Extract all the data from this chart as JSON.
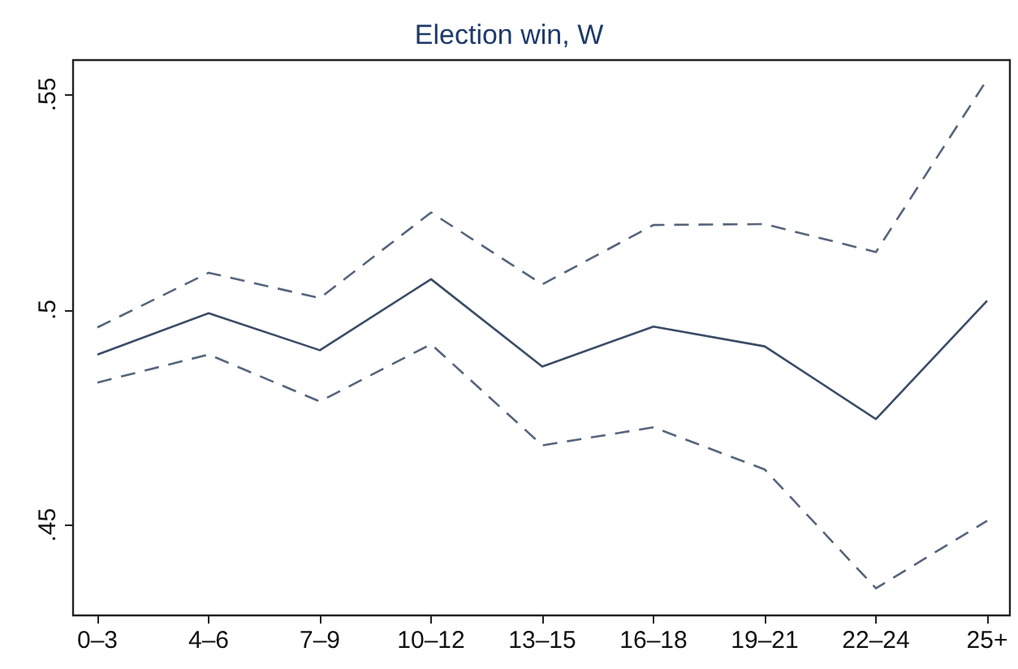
{
  "chart_data": {
    "type": "line",
    "title": "Election win, W",
    "categories": [
      "0–3",
      "4–6",
      "7–9",
      "10–12",
      "13–15",
      "16–18",
      "19–21",
      "22–24",
      "25+"
    ],
    "series": [
      {
        "color": "#3b4c66",
        "values": [
          0.4896,
          0.4992,
          0.4906,
          0.5071,
          0.4868,
          0.4961,
          0.4915,
          0.4746,
          0.5021
        ],
        "line_style": "solid"
      },
      {
        "color": "#56657c",
        "values": [
          0.4959,
          0.5086,
          0.5027,
          0.5226,
          0.5059,
          0.5197,
          0.5199,
          0.5134,
          0.5535
        ],
        "line_style": "dashed"
      },
      {
        "color": "#56657c",
        "values": [
          0.4831,
          0.4896,
          0.4787,
          0.492,
          0.4685,
          0.4727,
          0.4629,
          0.4353,
          0.451
        ],
        "line_style": "dashed"
      }
    ],
    "ylim": [
      0.429,
      0.558
    ],
    "yticks": [
      {
        "value": 0.45,
        "label": ".45"
      },
      {
        "value": 0.5,
        "label": ".5"
      },
      {
        "value": 0.55,
        "label": ".55"
      }
    ],
    "grid": false,
    "marker": "none"
  }
}
